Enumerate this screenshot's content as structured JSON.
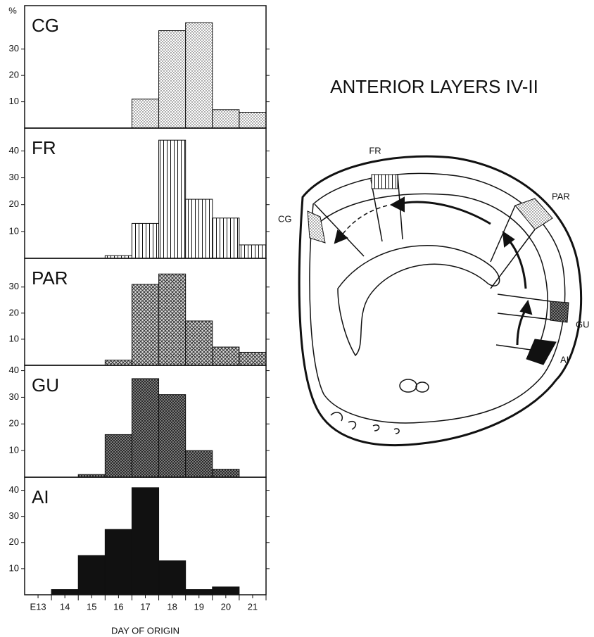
{
  "chart_data": [
    {
      "type": "histogram",
      "title": "CG",
      "ylabel": "%",
      "bins": [
        13.5,
        14.5,
        15.5,
        16.5,
        17.5,
        18.5,
        19.5,
        20.5,
        21.5
      ],
      "values": [
        0,
        0,
        0,
        11,
        37,
        40,
        7,
        6
      ],
      "fill": "dots",
      "xlim": [
        12.5,
        21.5
      ],
      "ylim": [
        0,
        46.5
      ],
      "yticks": [
        10,
        20,
        30
      ]
    },
    {
      "type": "histogram",
      "title": "FR",
      "bins": [
        13.5,
        14.5,
        15.5,
        16.5,
        17.5,
        18.5,
        19.5,
        20.5,
        21.5
      ],
      "values": [
        0,
        0,
        1,
        13,
        44,
        22,
        15,
        5
      ],
      "fill": "vlines",
      "xlim": [
        12.5,
        21.5
      ],
      "ylim": [
        0,
        48.5
      ],
      "yticks": [
        10,
        20,
        30,
        40
      ]
    },
    {
      "type": "histogram",
      "title": "PAR",
      "bins": [
        13.5,
        14.5,
        15.5,
        16.5,
        17.5,
        18.5,
        19.5,
        20.5,
        21.5
      ],
      "values": [
        0,
        0,
        2,
        31,
        35,
        17,
        7,
        5
      ],
      "fill": "cross",
      "xlim": [
        12.5,
        21.5
      ],
      "ylim": [
        0,
        41
      ],
      "yticks": [
        10,
        20,
        30
      ]
    },
    {
      "type": "histogram",
      "title": "GU",
      "bins": [
        13.5,
        14.5,
        15.5,
        16.5,
        17.5,
        18.5,
        19.5,
        20.5,
        21.5
      ],
      "values": [
        0,
        1,
        16,
        37,
        31,
        10,
        3,
        0
      ],
      "fill": "crossdense",
      "xlim": [
        12.5,
        21.5
      ],
      "ylim": [
        0,
        42
      ],
      "yticks": [
        10,
        20,
        30,
        40
      ]
    },
    {
      "type": "histogram",
      "title": "AI",
      "bins": [
        13.5,
        14.5,
        15.5,
        16.5,
        17.5,
        18.5,
        19.5,
        20.5,
        21.5
      ],
      "values": [
        2,
        15,
        25,
        41,
        13,
        2,
        3,
        0
      ],
      "fill": "solid",
      "xlim": [
        12.5,
        21.5
      ],
      "ylim": [
        0,
        45
      ],
      "yticks": [
        10,
        20,
        30,
        40
      ],
      "xlabel": "DAY OF ORIGIN",
      "xticks": [
        {
          "value": 13,
          "label": "E13"
        },
        14,
        15,
        16,
        17,
        18,
        19,
        20,
        21
      ]
    }
  ],
  "diagram": {
    "title": "ANTERIOR LAYERS IV-II",
    "labels": [
      "FR",
      "PAR",
      "CG",
      "GU",
      "AI"
    ]
  }
}
